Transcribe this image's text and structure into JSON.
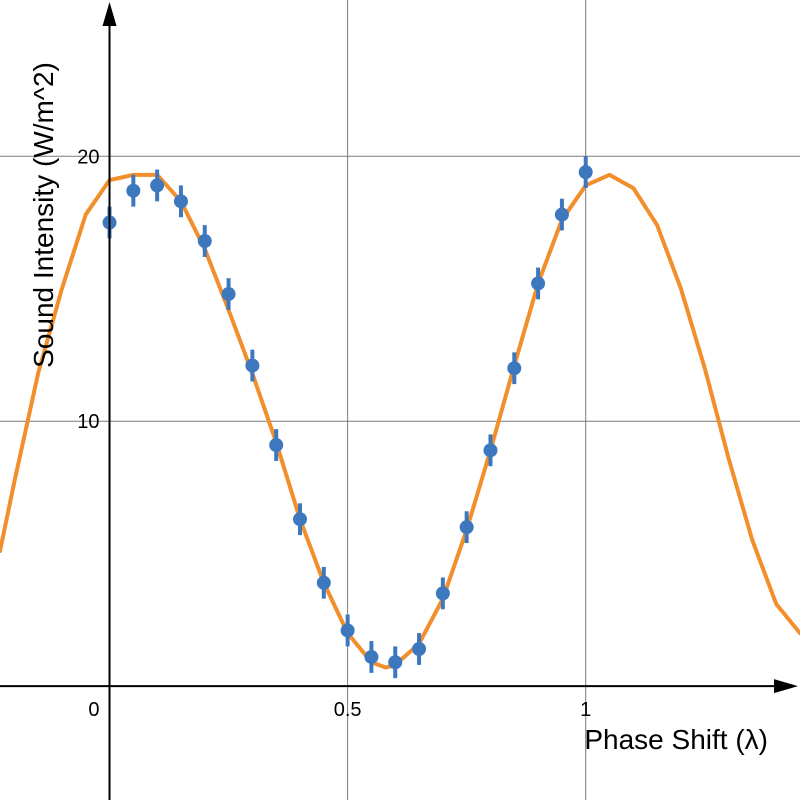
{
  "chart_data": {
    "type": "scatter",
    "xlabel": "Phase Shift (λ)",
    "ylabel": "Sound Intensity (W/m^2)",
    "xlim": [
      -0.23,
      1.45
    ],
    "ylim": [
      -4.3,
      25.9
    ],
    "grid": true,
    "x_ticks": [
      {
        "value": 0,
        "label": "0"
      },
      {
        "value": 0.5,
        "label": "0.5"
      },
      {
        "value": 1,
        "label": "1"
      }
    ],
    "y_ticks": [
      {
        "value": 10,
        "label": "10"
      },
      {
        "value": 20,
        "label": "20"
      }
    ],
    "colors": {
      "points": "#3d78bf",
      "curve": "#f28e2b",
      "grid": "#7a7a7a",
      "axes": "#000000"
    },
    "series": [
      {
        "type": "scatter_with_error",
        "points": [
          {
            "x": 0.0,
            "y": 17.5,
            "err": 0.6
          },
          {
            "x": 0.05,
            "y": 18.7,
            "err": 0.6
          },
          {
            "x": 0.1,
            "y": 18.9,
            "err": 0.6
          },
          {
            "x": 0.15,
            "y": 18.3,
            "err": 0.6
          },
          {
            "x": 0.2,
            "y": 16.8,
            "err": 0.6
          },
          {
            "x": 0.25,
            "y": 14.8,
            "err": 0.6
          },
          {
            "x": 0.3,
            "y": 12.1,
            "err": 0.6
          },
          {
            "x": 0.35,
            "y": 9.1,
            "err": 0.6
          },
          {
            "x": 0.4,
            "y": 6.3,
            "err": 0.6
          },
          {
            "x": 0.45,
            "y": 3.9,
            "err": 0.6
          },
          {
            "x": 0.5,
            "y": 2.1,
            "err": 0.6
          },
          {
            "x": 0.55,
            "y": 1.1,
            "err": 0.6
          },
          {
            "x": 0.6,
            "y": 0.9,
            "err": 0.6
          },
          {
            "x": 0.65,
            "y": 1.4,
            "err": 0.6
          },
          {
            "x": 0.7,
            "y": 3.5,
            "err": 0.6
          },
          {
            "x": 0.75,
            "y": 6.0,
            "err": 0.6
          },
          {
            "x": 0.8,
            "y": 8.9,
            "err": 0.6
          },
          {
            "x": 0.85,
            "y": 12.0,
            "err": 0.6
          },
          {
            "x": 0.9,
            "y": 15.2,
            "err": 0.6
          },
          {
            "x": 0.95,
            "y": 17.8,
            "err": 0.6
          },
          {
            "x": 1.0,
            "y": 19.4,
            "err": 0.6
          }
        ]
      },
      {
        "type": "curve",
        "points": [
          [
            -0.23,
            5.1
          ],
          [
            -0.2,
            7.7
          ],
          [
            -0.15,
            11.8
          ],
          [
            -0.1,
            15.0
          ],
          [
            -0.05,
            17.8
          ],
          [
            0.0,
            19.1
          ],
          [
            0.05,
            19.3
          ],
          [
            0.1,
            19.3
          ],
          [
            0.15,
            18.3
          ],
          [
            0.2,
            16.5
          ],
          [
            0.25,
            14.2
          ],
          [
            0.3,
            11.8
          ],
          [
            0.35,
            9.2
          ],
          [
            0.4,
            6.3
          ],
          [
            0.45,
            3.9
          ],
          [
            0.5,
            2.0
          ],
          [
            0.55,
            0.9
          ],
          [
            0.58,
            0.7
          ],
          [
            0.6,
            0.8
          ],
          [
            0.65,
            1.6
          ],
          [
            0.7,
            3.3
          ],
          [
            0.75,
            5.9
          ],
          [
            0.8,
            8.9
          ],
          [
            0.85,
            12.1
          ],
          [
            0.9,
            15.2
          ],
          [
            0.95,
            17.6
          ],
          [
            1.0,
            18.9
          ],
          [
            1.05,
            19.3
          ],
          [
            1.1,
            18.8
          ],
          [
            1.15,
            17.4
          ],
          [
            1.2,
            15.0
          ],
          [
            1.25,
            12.0
          ],
          [
            1.3,
            8.6
          ],
          [
            1.35,
            5.5
          ],
          [
            1.4,
            3.1
          ],
          [
            1.45,
            2.0
          ]
        ]
      }
    ]
  }
}
